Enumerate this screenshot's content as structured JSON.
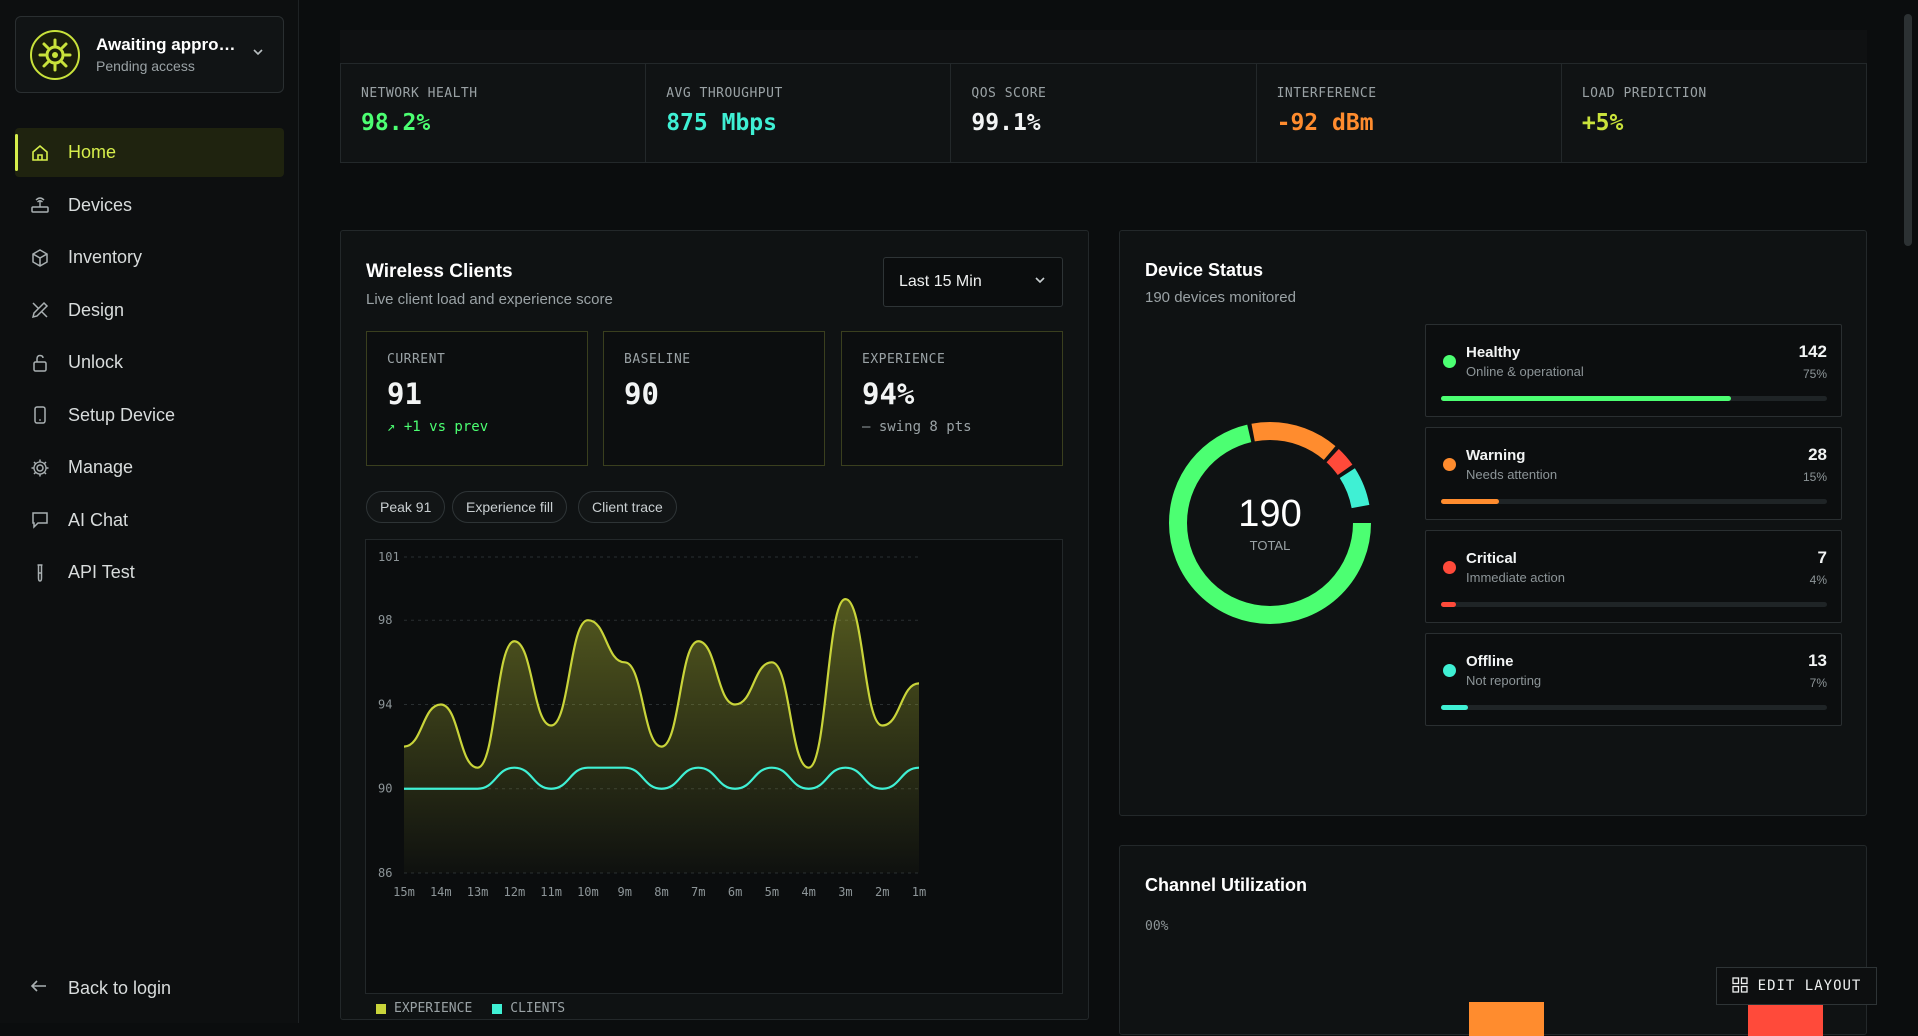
{
  "account": {
    "title": "Awaiting approval",
    "subtitle": "Pending access"
  },
  "nav": [
    {
      "label": "Home",
      "icon": "home-icon",
      "active": true
    },
    {
      "label": "Devices",
      "icon": "router-icon"
    },
    {
      "label": "Inventory",
      "icon": "box-icon"
    },
    {
      "label": "Design",
      "icon": "pencil-ruler-icon"
    },
    {
      "label": "Unlock",
      "icon": "unlock-icon"
    },
    {
      "label": "Setup Device",
      "icon": "smartphone-icon"
    },
    {
      "label": "Manage",
      "icon": "gear-icon"
    },
    {
      "label": "AI Chat",
      "icon": "chat-icon"
    },
    {
      "label": "API Test",
      "icon": "test-tube-icon"
    }
  ],
  "back_label": "Back to login",
  "kpis": [
    {
      "label": "NETWORK HEALTH",
      "value": "98.2%",
      "color": "#4cff72"
    },
    {
      "label": "AVG THROUGHPUT",
      "value": "875 Mbps",
      "color": "#3ff0d4"
    },
    {
      "label": "QOS SCORE",
      "value": "99.1%",
      "color": "#f2f4f4"
    },
    {
      "label": "INTERFERENCE",
      "value": "-92 dBm",
      "color": "#ff8c2e"
    },
    {
      "label": "LOAD PREDICTION",
      "value": "+5%",
      "color": "#c9e23b"
    }
  ],
  "wireless": {
    "title": "Wireless Clients",
    "subtitle": "Live client load and experience score",
    "range": "Last 15 Min",
    "stats": [
      {
        "label": "CURRENT",
        "value": "91",
        "note": "↗ +1 vs prev",
        "note_color": "#4cff72"
      },
      {
        "label": "BASELINE",
        "value": "90",
        "note": "",
        "note_color": "#9aa2a5"
      },
      {
        "label": "EXPERIENCE",
        "value": "94%",
        "note": "— swing 8 pts",
        "note_color": "#9aa2a5"
      }
    ],
    "chips": [
      "Peak 91",
      "Experience fill",
      "Client trace"
    ],
    "legend": [
      {
        "label": "EXPERIENCE",
        "color": "#c9d43a"
      },
      {
        "label": "CLIENTS",
        "color": "#3ff0d4"
      }
    ]
  },
  "chart_data": {
    "type": "area",
    "x": [
      "15m",
      "14m",
      "13m",
      "12m",
      "11m",
      "10m",
      "9m",
      "8m",
      "7m",
      "6m",
      "5m",
      "4m",
      "3m",
      "2m",
      "1m"
    ],
    "y_ticks": [
      "101",
      "98",
      "94",
      "90",
      "86"
    ],
    "ylim": [
      86,
      101
    ],
    "grid": true,
    "series": [
      {
        "name": "EXPERIENCE",
        "color": "#c9d43a",
        "values": [
          92,
          94,
          91,
          97,
          93,
          98,
          96,
          92,
          97,
          94,
          96,
          91,
          99,
          93,
          95
        ]
      },
      {
        "name": "CLIENTS",
        "color": "#3ff0d4",
        "values": [
          90,
          90,
          90,
          91,
          90,
          91,
          91,
          90,
          91,
          90,
          91,
          90,
          91,
          90,
          91
        ]
      }
    ]
  },
  "device_status": {
    "title": "Device Status",
    "subtitle": "190 devices monitored",
    "total": "190",
    "total_label": "TOTAL",
    "rows": [
      {
        "name": "Healthy",
        "desc": "Online & operational",
        "count": "142",
        "pct": "75%",
        "fraction": 0.75,
        "color": "#4cff72"
      },
      {
        "name": "Warning",
        "desc": "Needs attention",
        "count": "28",
        "pct": "15%",
        "fraction": 0.15,
        "color": "#ff8c2e"
      },
      {
        "name": "Critical",
        "desc": "Immediate action",
        "count": "7",
        "pct": "4%",
        "fraction": 0.04,
        "color": "#ff4a3a"
      },
      {
        "name": "Offline",
        "desc": "Not reporting",
        "count": "13",
        "pct": "7%",
        "fraction": 0.07,
        "color": "#3ff0d4"
      }
    ]
  },
  "channel": {
    "title": "Channel Utilization",
    "axis_top": "00%"
  },
  "edit_layout": "EDIT LAYOUT"
}
